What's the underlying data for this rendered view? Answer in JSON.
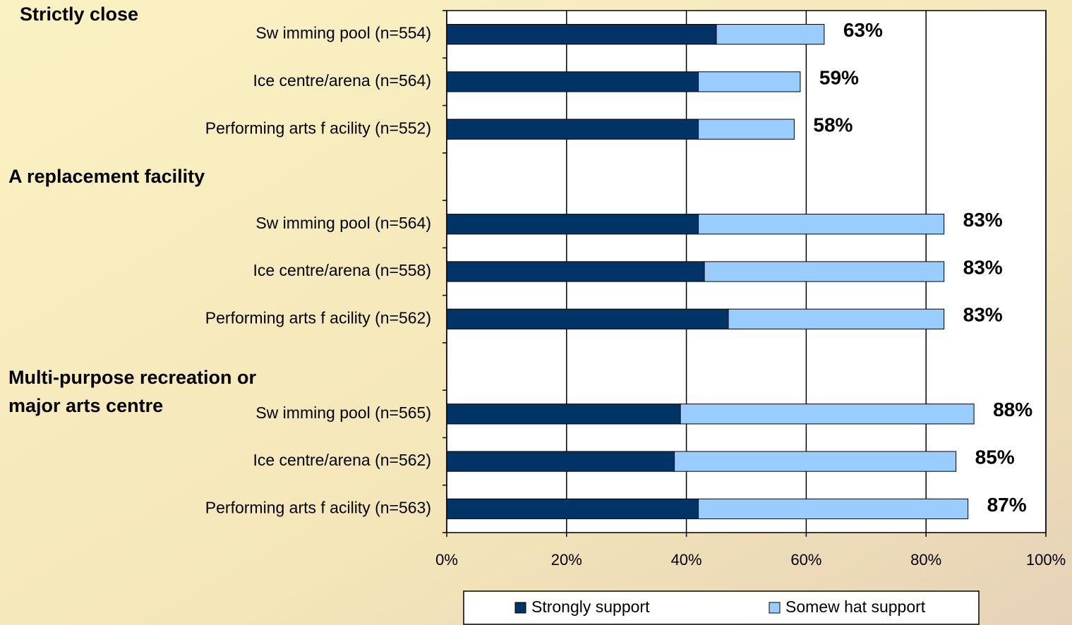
{
  "chart_data": {
    "type": "stacked-barh",
    "group_labels": [
      [
        "Strictly close"
      ],
      [
        "A replacement facility"
      ],
      [
        "Multi-purpose recreation or",
        "major arts centre"
      ]
    ],
    "categories": [
      "Sw imming pool (n=554)",
      "Ice centre/arena (n=564)",
      "Performing arts f acility (n=552)",
      null,
      "Sw imming pool (n=564)",
      "Ice centre/arena (n=558)",
      "Performing arts f acility (n=562)",
      null,
      "Sw imming pool (n=565)",
      "Ice centre/arena (n=562)",
      "Performing arts f acility (n=563)"
    ],
    "series": [
      {
        "name": "Strongly support",
        "color": "#003366",
        "values": [
          45,
          42,
          42,
          null,
          42,
          43,
          47,
          null,
          39,
          38,
          42
        ]
      },
      {
        "name": "Somew hat support",
        "color": "#99ccff",
        "values": [
          18,
          17,
          16,
          null,
          41,
          40,
          36,
          null,
          49,
          47,
          45
        ]
      }
    ],
    "totals": [
      63,
      59,
      58,
      null,
      83,
      83,
      83,
      null,
      88,
      85,
      87
    ],
    "total_labels": [
      "63%",
      "59%",
      "58%",
      null,
      "83%",
      "83%",
      "83%",
      null,
      "88%",
      "85%",
      "87%"
    ],
    "xlim": [
      0,
      100
    ],
    "xticks": [
      {
        "value": 0,
        "label": "0%"
      },
      {
        "value": 20,
        "label": "20%"
      },
      {
        "value": 40,
        "label": "40%"
      },
      {
        "value": 60,
        "label": "60%"
      },
      {
        "value": 80,
        "label": "80%"
      },
      {
        "value": 100,
        "label": "100%"
      }
    ],
    "grid": true,
    "legend": "bottom"
  }
}
